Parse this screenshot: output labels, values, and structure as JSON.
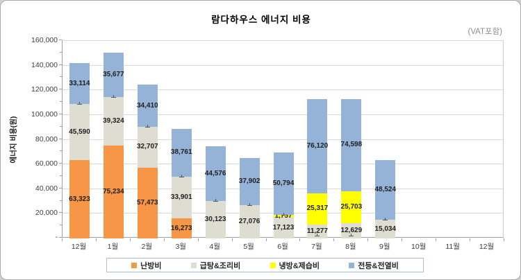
{
  "chart_data": {
    "type": "bar",
    "subtype": "stacked-column",
    "title": "람다하우스 에너지  비용",
    "note": "(VAT포함)",
    "ylabel": "에너지 비용(원)",
    "xlabel": "",
    "ylim": [
      0,
      160000
    ],
    "ytick_step": 20000,
    "zero_tick_label": "-",
    "grid": true,
    "legend_position": "bottom",
    "categories": [
      "12월",
      "1월",
      "2월",
      "3월",
      "4월",
      "5월",
      "6월",
      "7월",
      "8월",
      "9월",
      "10월",
      "11월",
      "12월"
    ],
    "series": [
      {
        "key": "heating",
        "name": "난방비",
        "color": "#F79646",
        "values": [
          63323,
          75234,
          57473,
          16273,
          0,
          0,
          0,
          0,
          0,
          0,
          0,
          0,
          0
        ]
      },
      {
        "key": "hot-water-cooking",
        "name": "급탕&조리비",
        "color": "#DEDDD1",
        "values": [
          45590,
          39324,
          32707,
          33901,
          30123,
          27076,
          17123,
          11277,
          12629,
          15034,
          0,
          0,
          0
        ]
      },
      {
        "key": "cooling-dehumid",
        "name": "냉방&제습비",
        "color": "#FFFF00",
        "values": [
          0,
          0,
          0,
          0,
          0,
          0,
          1757,
          25317,
          25703,
          0,
          0,
          0,
          0
        ]
      },
      {
        "key": "lighting-electric",
        "name": "전등&전열비",
        "color": "#95B3D7",
        "values": [
          33114,
          35677,
          34410,
          38761,
          44576,
          37902,
          50794,
          76120,
          74598,
          48524,
          0,
          0,
          0
        ]
      }
    ],
    "segment_tick_marks": [
      108913,
      114558,
      90180,
      50174,
      30123,
      27076,
      18880,
      2300,
      2300,
      15034,
      null,
      null,
      null
    ],
    "colors": {
      "gridline": "#D9D9D9",
      "axis": "#9E9E9E",
      "plot_border": "#C9C9C9",
      "value_label_text": "#1F1F1F",
      "axis_text": "#3D3D3D",
      "note_text": "#8C8C8C",
      "legend_border": "#A9BDD6"
    }
  }
}
